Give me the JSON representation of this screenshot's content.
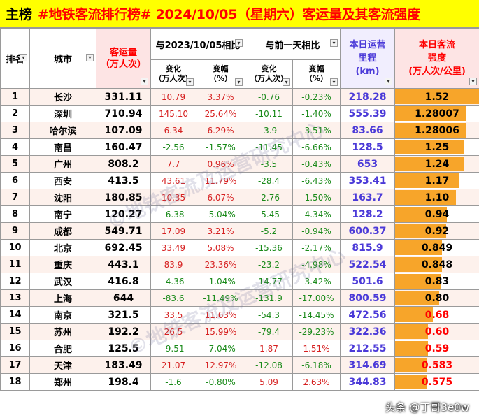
{
  "title": {
    "main": "主榜",
    "rest": "#地铁客流排行榜# 2024/10/05（星期六）客运量及其客流强度"
  },
  "headers": {
    "rank": "排名",
    "city": "城市",
    "volume_line1": "客运量",
    "volume_line2": "（万人次）",
    "yoy_group": "与2023/10/05相比",
    "dod_group": "与前一天相比",
    "change_line1": "变化",
    "change_line2": "（万人次）",
    "pct_line1": "变幅",
    "pct_line2": "（%）",
    "length_line1": "本日运营",
    "length_line2": "里程",
    "length_line3": "(km)",
    "intensity_line1": "本日客流",
    "intensity_line2": "强度",
    "intensity_line3": "(万人次/公里)"
  },
  "rows": [
    {
      "rank": "1",
      "city": "长沙",
      "volume": "331.11",
      "yoy_change": "10.79",
      "yoy_pct": "3.37%",
      "dod_change": "-0.76",
      "dod_pct": "-0.23%",
      "length": "218.28",
      "intensity": "1.52",
      "intensity_value": 1.52
    },
    {
      "rank": "2",
      "city": "深圳",
      "volume": "710.94",
      "yoy_change": "145.10",
      "yoy_pct": "25.64%",
      "dod_change": "-10.11",
      "dod_pct": "-1.40%",
      "length": "555.39",
      "intensity": "1.28007",
      "intensity_value": 1.28007
    },
    {
      "rank": "3",
      "city": "哈尔滨",
      "volume": "107.09",
      "yoy_change": "6.34",
      "yoy_pct": "6.29%",
      "dod_change": "-3.9",
      "dod_pct": "-3.51%",
      "length": "83.66",
      "intensity": "1.28006",
      "intensity_value": 1.28006
    },
    {
      "rank": "4",
      "city": "南昌",
      "volume": "160.47",
      "yoy_change": "-2.56",
      "yoy_pct": "-1.57%",
      "dod_change": "-11.45",
      "dod_pct": "-6.66%",
      "length": "128.5",
      "intensity": "1.25",
      "intensity_value": 1.25
    },
    {
      "rank": "5",
      "city": "广州",
      "volume": "808.2",
      "yoy_change": "7.7",
      "yoy_pct": "0.96%",
      "dod_change": "-3.5",
      "dod_pct": "-0.43%",
      "length": "653",
      "intensity": "1.24",
      "intensity_value": 1.24
    },
    {
      "rank": "6",
      "city": "西安",
      "volume": "413.5",
      "yoy_change": "43.61",
      "yoy_pct": "11.79%",
      "dod_change": "-28.4",
      "dod_pct": "-6.43%",
      "length": "353.41",
      "intensity": "1.17",
      "intensity_value": 1.17
    },
    {
      "rank": "7",
      "city": "沈阳",
      "volume": "180.85",
      "yoy_change": "10.35",
      "yoy_pct": "6.07%",
      "dod_change": "-2.76",
      "dod_pct": "-1.50%",
      "length": "163.7",
      "intensity": "1.10",
      "intensity_value": 1.1
    },
    {
      "rank": "8",
      "city": "南宁",
      "volume": "120.27",
      "yoy_change": "-6.38",
      "yoy_pct": "-5.04%",
      "dod_change": "-5.45",
      "dod_pct": "-4.34%",
      "length": "128.2",
      "intensity": "0.94",
      "intensity_value": 0.94
    },
    {
      "rank": "9",
      "city": "成都",
      "volume": "549.71",
      "yoy_change": "17.09",
      "yoy_pct": "3.21%",
      "dod_change": "-5.2",
      "dod_pct": "-0.94%",
      "length": "600.37",
      "intensity": "0.92",
      "intensity_value": 0.92
    },
    {
      "rank": "10",
      "city": "北京",
      "volume": "692.45",
      "yoy_change": "33.49",
      "yoy_pct": "5.08%",
      "dod_change": "-15.36",
      "dod_pct": "-2.17%",
      "length": "815.9",
      "intensity": "0.849",
      "intensity_value": 0.849
    },
    {
      "rank": "11",
      "city": "重庆",
      "volume": "443.1",
      "yoy_change": "83.9",
      "yoy_pct": "23.36%",
      "dod_change": "-23.2",
      "dod_pct": "-4.98%",
      "length": "522.54",
      "intensity": "0.848",
      "intensity_value": 0.848
    },
    {
      "rank": "12",
      "city": "武汉",
      "volume": "416.8",
      "yoy_change": "-4.36",
      "yoy_pct": "-1.04%",
      "dod_change": "-14.77",
      "dod_pct": "-3.42%",
      "length": "501.6",
      "intensity": "0.83",
      "intensity_value": 0.83
    },
    {
      "rank": "13",
      "city": "上海",
      "volume": "644",
      "yoy_change": "-83.6",
      "yoy_pct": "-11.49%",
      "dod_change": "-131.9",
      "dod_pct": "-17.00%",
      "length": "800.59",
      "intensity": "0.80",
      "intensity_value": 0.8
    },
    {
      "rank": "14",
      "city": "南京",
      "volume": "321.5",
      "yoy_change": "33.5",
      "yoy_pct": "11.63%",
      "dod_change": "-54.3",
      "dod_pct": "-14.45%",
      "length": "472.56",
      "intensity": "0.68",
      "intensity_value": 0.68
    },
    {
      "rank": "15",
      "city": "苏州",
      "volume": "192.2",
      "yoy_change": "26.5",
      "yoy_pct": "15.99%",
      "dod_change": "-79.4",
      "dod_pct": "-29.23%",
      "length": "322.36",
      "intensity": "0.60",
      "intensity_value": 0.6
    },
    {
      "rank": "16",
      "city": "合肥",
      "volume": "125.5",
      "yoy_change": "-9.51",
      "yoy_pct": "-7.04%",
      "dod_change": "1.87",
      "dod_pct": "1.51%",
      "length": "212.55",
      "intensity": "0.59",
      "intensity_value": 0.59
    },
    {
      "rank": "17",
      "city": "天津",
      "volume": "183.49",
      "yoy_change": "21.07",
      "yoy_pct": "12.97%",
      "dod_change": "-12.08",
      "dod_pct": "-6.18%",
      "length": "314.69",
      "intensity": "0.583",
      "intensity_value": 0.583
    },
    {
      "rank": "18",
      "city": "郑州",
      "volume": "198.4",
      "yoy_change": "-1.6",
      "yoy_pct": "-0.80%",
      "dod_change": "5.09",
      "dod_pct": "2.63%",
      "length": "344.83",
      "intensity": "0.575",
      "intensity_value": 0.575
    }
  ],
  "intensity_scale_max": 1.52,
  "watermark": "©地铁客流及运营研究中心",
  "credit": "头条 @丁哥3e0w"
}
